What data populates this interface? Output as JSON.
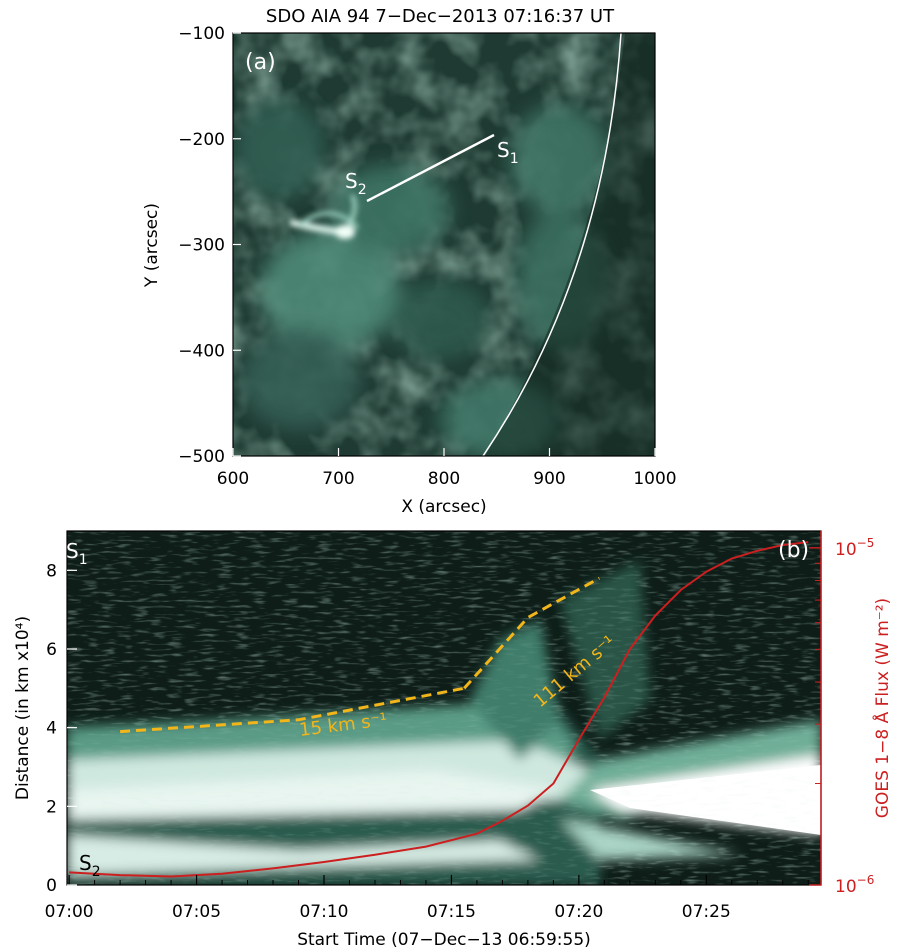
{
  "panel_a": {
    "title": "SDO AIA 94   7−Dec−2013 07:16:37 UT",
    "label": "(a)",
    "xlabel": "X (arcsec)",
    "ylabel": "Y (arcsec)",
    "xticks": [
      "600",
      "700",
      "800",
      "900",
      "1000"
    ],
    "yticks": [
      "−100",
      "−200",
      "−300",
      "−400",
      "−500"
    ],
    "slit_start": {
      "letter": "S",
      "sub": "1"
    },
    "slit_end": {
      "letter": "S",
      "sub": "2"
    }
  },
  "panel_b": {
    "label": "(b)",
    "s1": {
      "letter": "S",
      "sub": "1"
    },
    "s2": {
      "letter": "S",
      "sub": "2"
    },
    "xlabel": "Start Time (07−Dec−13 06:59:55)",
    "ylabel": "Distance (in km x10⁴)",
    "ylabel_right": "GOES 1−8 Å Flux (W m⁻²)",
    "xticks": [
      "07:00",
      "07:05",
      "07:10",
      "07:15",
      "07:20",
      "07:25"
    ],
    "yticks": [
      "0",
      "2",
      "4",
      "6",
      "8"
    ],
    "yticks_right": [
      {
        "base": "10",
        "exp": "−5"
      },
      {
        "base": "10",
        "exp": "−6"
      }
    ],
    "speed_slow": "15 km s⁻¹",
    "speed_fast": "111 km s⁻¹"
  },
  "colors": {
    "goes_curve": "#cc1f1f",
    "fit_line": "#f2b51a",
    "image_tint": "#7fbfae"
  },
  "chart_data": [
    {
      "type": "heatmap",
      "title": "SDO AIA 94   7-Dec-2013 07:16:37 UT",
      "xlabel": "X (arcsec)",
      "ylabel": "Y (arcsec)",
      "xlim": [
        600,
        1000
      ],
      "ylim": [
        -500,
        -100
      ]
    },
    {
      "type": "heatmap",
      "xlabel": "Start Time (07-Dec-13 06:59:55)",
      "ylabel": "Distance (in km x10^4)",
      "ylim": [
        0,
        9
      ],
      "fits": [
        {
          "label": "15 km s-1",
          "points": [
            [
              2.0,
              3.9
            ],
            [
              9.0,
              4.2
            ],
            [
              15.5,
              5.0
            ]
          ]
        },
        {
          "label": "111 km s-1",
          "points": [
            [
              15.5,
              5.0
            ],
            [
              18.0,
              6.8
            ],
            [
              20.8,
              7.8
            ]
          ]
        }
      ],
      "goes_flux": {
        "ylabel": "GOES 1-8 Å Flux (W m^-2)",
        "scale": "log",
        "x_minutes": [
          0,
          2,
          4,
          6,
          8,
          10,
          12,
          14,
          16,
          17,
          18,
          19,
          20,
          21,
          22,
          23,
          24,
          25,
          26,
          27,
          28,
          29
        ],
        "flux_e6": [
          1.09,
          1.07,
          1.06,
          1.08,
          1.12,
          1.17,
          1.23,
          1.3,
          1.42,
          1.55,
          1.72,
          2.0,
          2.7,
          3.6,
          5.0,
          6.3,
          7.5,
          8.5,
          9.3,
          9.8,
          10.2,
          10.4
        ]
      }
    }
  ]
}
